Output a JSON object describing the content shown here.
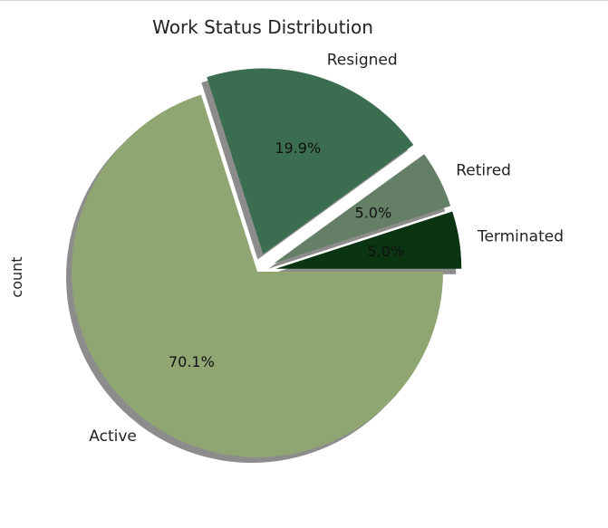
{
  "chart_data": {
    "type": "pie",
    "title": "Work Status Distribution",
    "ylabel": "count",
    "slices": [
      {
        "label": "Active",
        "value": 70.1,
        "pct_label": "70.1%",
        "color": "#8fa673",
        "explode": 0.0
      },
      {
        "label": "Resigned",
        "value": 19.9,
        "pct_label": "19.9%",
        "color": "#3b6e50",
        "explode": 0.1
      },
      {
        "label": "Retired",
        "value": 5.0,
        "pct_label": "5.0%",
        "color": "#657f67",
        "explode": 0.1
      },
      {
        "label": "Terminated",
        "value": 5.0,
        "pct_label": "5.0%",
        "color": "#0b3512",
        "explode": 0.1
      }
    ],
    "shadow": true,
    "shadow_color": "#8c8c8c",
    "start_angle_deg": 0,
    "direction": "clockwise"
  }
}
